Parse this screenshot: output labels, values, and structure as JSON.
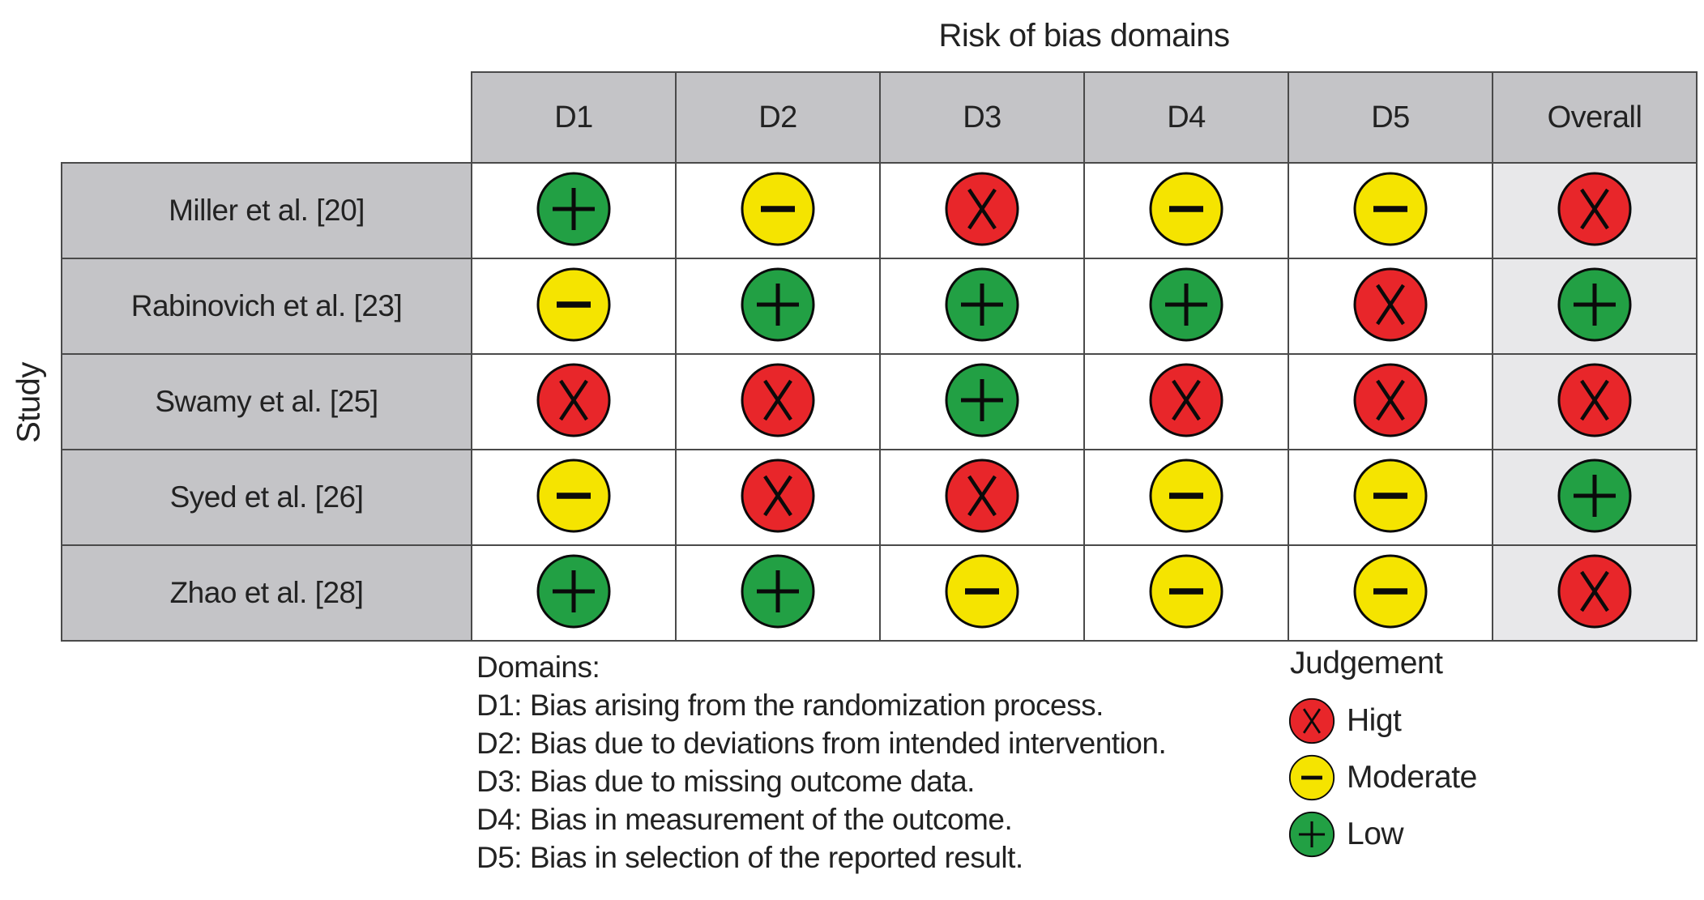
{
  "figure": {
    "title": "Risk of bias domains",
    "row_axis_label": "Study"
  },
  "chart_data": {
    "type": "table",
    "title": "Risk of bias domains",
    "row_axis_label": "Study",
    "columns": [
      "D1",
      "D2",
      "D3",
      "D4",
      "D5",
      "Overall"
    ],
    "rows": [
      "Miller et al. [20]",
      "Rabinovich et al. [23]",
      "Swamy et al. [25]",
      "Syed et al. [26]",
      "Zhao et al. [28]"
    ],
    "values": [
      [
        "low",
        "moderate",
        "high",
        "moderate",
        "moderate",
        "high"
      ],
      [
        "moderate",
        "low",
        "low",
        "low",
        "high",
        "low"
      ],
      [
        "high",
        "high",
        "low",
        "high",
        "high",
        "high"
      ],
      [
        "moderate",
        "high",
        "high",
        "moderate",
        "moderate",
        "low"
      ],
      [
        "low",
        "low",
        "moderate",
        "moderate",
        "moderate",
        "high"
      ]
    ],
    "legend_position": "bottom-right",
    "grid": true
  },
  "legend": {
    "title": "Judgement",
    "items": [
      {
        "rating": "high",
        "symbol": "x",
        "label": "Higt"
      },
      {
        "rating": "moderate",
        "symbol": "minus",
        "label": "Moderate"
      },
      {
        "rating": "low",
        "symbol": "plus",
        "label": "Low"
      }
    ]
  },
  "domains_note": {
    "heading": "Domains:",
    "lines": [
      "D1: Bias arising from the randomization process.",
      "D2: Bias due to deviations from intended intervention.",
      "D3: Bias due to missing outcome data.",
      "D4: Bias in measurement of the outcome.",
      "D5: Bias in selection of the reported result."
    ]
  },
  "colors": {
    "high": "#e8262a",
    "moderate": "#f5e400",
    "low": "#22a044",
    "header_bg": "#c4c4c7",
    "overall_bg": "#e8e8ea",
    "border": "#4a4a4a",
    "symbol_stroke": "#0a0a0a"
  }
}
